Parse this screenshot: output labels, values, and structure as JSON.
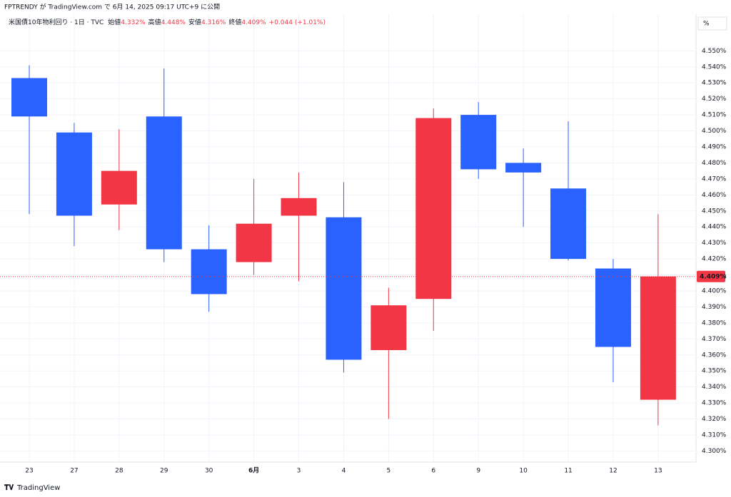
{
  "header": {
    "published": "FPTRENDY が TradingView.com で 6月 14, 2025 09:17 UTC+9 に公開",
    "footer": "TradingView"
  },
  "chart_data": {
    "type": "candlestick",
    "title": "米国債10年物利回り · 1日 · TVC",
    "legend": [
      {
        "label": "始値",
        "value": "4.332%"
      },
      {
        "label": "高値",
        "value": "4.448%"
      },
      {
        "label": "安値",
        "value": "4.316%"
      },
      {
        "label": "終値",
        "value": "4.409%"
      }
    ],
    "change": "+0.044 (+1.01%)",
    "unit": "%",
    "last_price_label": "4.409%",
    "categories": [
      "23",
      "27",
      "28",
      "29",
      "30",
      "6月",
      "3",
      "4",
      "5",
      "6",
      "9",
      "10",
      "11",
      "12",
      "13"
    ],
    "open": [
      4.533,
      4.499,
      4.454,
      4.509,
      4.426,
      4.418,
      4.447,
      4.446,
      4.363,
      4.395,
      4.51,
      4.48,
      4.464,
      4.414,
      4.332
    ],
    "high": [
      4.541,
      4.505,
      4.501,
      4.539,
      4.441,
      4.47,
      4.474,
      4.468,
      4.402,
      4.514,
      4.518,
      4.489,
      4.506,
      4.42,
      4.448
    ],
    "low": [
      4.448,
      4.428,
      4.438,
      4.418,
      4.387,
      4.41,
      4.406,
      4.349,
      4.32,
      4.375,
      4.47,
      4.44,
      4.419,
      4.343,
      4.316
    ],
    "close": [
      4.509,
      4.447,
      4.475,
      4.426,
      4.398,
      4.442,
      4.458,
      4.357,
      4.391,
      4.508,
      4.476,
      4.474,
      4.42,
      4.365,
      4.409
    ],
    "up_color": "#f23645",
    "down_color": "#2962ff",
    "ylim": [
      4.2935,
      4.5595
    ],
    "yticks": [
      {
        "value": 4.3,
        "label": "4.300%"
      },
      {
        "value": 4.31,
        "label": "4.310%"
      },
      {
        "value": 4.32,
        "label": "4.320%"
      },
      {
        "value": 4.33,
        "label": "4.330%"
      },
      {
        "value": 4.34,
        "label": "4.340%"
      },
      {
        "value": 4.35,
        "label": "4.350%"
      },
      {
        "value": 4.36,
        "label": "4.360%"
      },
      {
        "value": 4.37,
        "label": "4.370%"
      },
      {
        "value": 4.38,
        "label": "4.380%"
      },
      {
        "value": 4.39,
        "label": "4.390%"
      },
      {
        "value": 4.4,
        "label": "4.400%"
      },
      {
        "value": 4.41,
        "label": "4.410%"
      },
      {
        "value": 4.42,
        "label": "4.420%"
      },
      {
        "value": 4.43,
        "label": "4.430%"
      },
      {
        "value": 4.44,
        "label": "4.440%"
      },
      {
        "value": 4.45,
        "label": "4.450%"
      },
      {
        "value": 4.46,
        "label": "4.460%"
      },
      {
        "value": 4.47,
        "label": "4.470%"
      },
      {
        "value": 4.48,
        "label": "4.480%"
      },
      {
        "value": 4.49,
        "label": "4.490%"
      },
      {
        "value": 4.5,
        "label": "4.500%"
      },
      {
        "value": 4.51,
        "label": "4.510%"
      },
      {
        "value": 4.52,
        "label": "4.520%"
      },
      {
        "value": 4.53,
        "label": "4.530%"
      },
      {
        "value": 4.54,
        "label": "4.540%"
      },
      {
        "value": 4.55,
        "label": "4.550%"
      }
    ],
    "grid": true
  }
}
